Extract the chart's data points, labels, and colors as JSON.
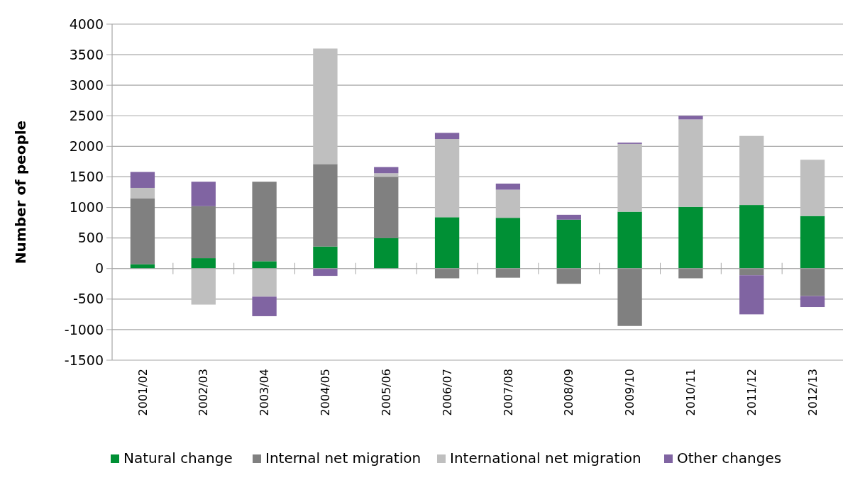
{
  "chart_data": {
    "type": "bar",
    "stacked": true,
    "ylabel": "Number of people",
    "categories": [
      "2001/02",
      "2002/03",
      "2003/04",
      "2004/05",
      "2005/06",
      "2006/07",
      "2007/08",
      "2008/09",
      "2009/10",
      "2010/11",
      "2011/12",
      "2012/13"
    ],
    "series": [
      {
        "name": "Natural change",
        "color": "#009035",
        "values": [
          70,
          170,
          120,
          360,
          500,
          840,
          830,
          800,
          930,
          1010,
          1040,
          860
        ]
      },
      {
        "name": "Internal net migration",
        "color": "#808080",
        "values": [
          1080,
          850,
          1300,
          1350,
          1000,
          -160,
          -150,
          -250,
          -940,
          -160,
          -110,
          -450
        ]
      },
      {
        "name": "International net migration",
        "color": "#bfbfbf",
        "values": [
          170,
          -590,
          -460,
          1890,
          60,
          1280,
          460,
          null,
          1110,
          1430,
          1130,
          920
        ]
      },
      {
        "name": "Other changes",
        "color": "#8064a2",
        "values": [
          260,
          400,
          -320,
          -120,
          100,
          100,
          100,
          80,
          20,
          60,
          -640,
          -180
        ]
      }
    ],
    "ylim": [
      -1500,
      4000
    ],
    "yticks": [
      -1500,
      -1000,
      -500,
      0,
      500,
      1000,
      1500,
      2000,
      2500,
      3000,
      3500,
      4000
    ],
    "grid": "y",
    "legend": "bottom"
  }
}
